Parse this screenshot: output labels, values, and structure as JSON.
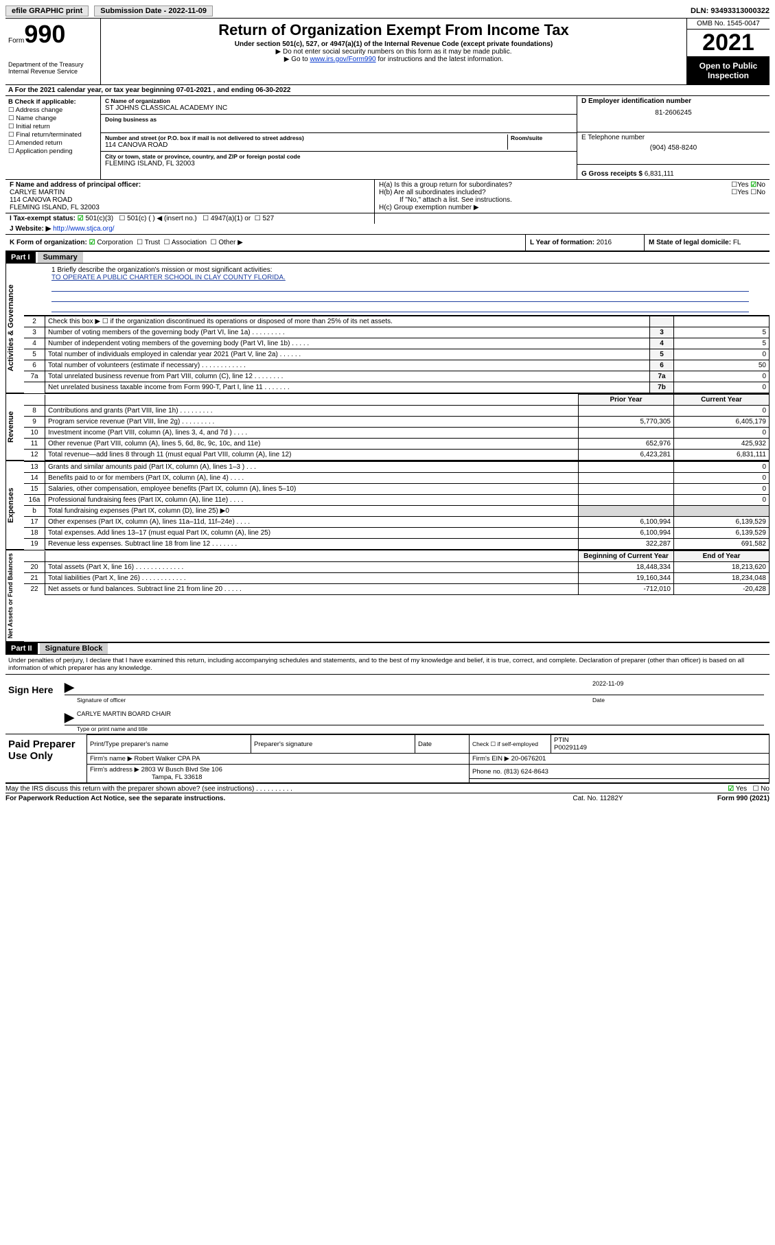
{
  "topbar": {
    "efile": "efile GRAPHIC print",
    "submission_label": "Submission Date - 2022-11-09",
    "dln": "DLN: 93493313000322"
  },
  "header": {
    "form_word": "Form",
    "form_num": "990",
    "dept": "Department of the Treasury\nInternal Revenue Service",
    "title": "Return of Organization Exempt From Income Tax",
    "sub1": "Under section 501(c), 527, or 4947(a)(1) of the Internal Revenue Code (except private foundations)",
    "sub2": "▶ Do not enter social security numbers on this form as it may be made public.",
    "sub3_pre": "▶ Go to ",
    "sub3_link": "www.irs.gov/Form990",
    "sub3_post": " for instructions and the latest information.",
    "omb": "OMB No. 1545-0047",
    "year": "2021",
    "inspection": "Open to Public Inspection"
  },
  "lineA": "A For the 2021 calendar year, or tax year beginning 07-01-2021   , and ending 06-30-2022",
  "colB": {
    "title": "B Check if applicable:",
    "items": [
      "Address change",
      "Name change",
      "Initial return",
      "Final return/terminated",
      "Amended return",
      "Application pending"
    ]
  },
  "colC": {
    "name_label": "C Name of organization",
    "name": "ST JOHNS CLASSICAL ACADEMY INC",
    "dba_label": "Doing business as",
    "dba": "",
    "street_label": "Number and street (or P.O. box if mail is not delivered to street address)",
    "street": "114 CANOVA ROAD",
    "suite_label": "Room/suite",
    "suite": "",
    "city_label": "City or town, state or province, country, and ZIP or foreign postal code",
    "city": "FLEMING ISLAND, FL  32003"
  },
  "colD": {
    "ein_label": "D Employer identification number",
    "ein": "81-2606245",
    "phone_label": "E Telephone number",
    "phone": "(904) 458-8240",
    "gross_label": "G Gross receipts $",
    "gross": "6,831,111"
  },
  "rowF": {
    "f_label": "F Name and address of principal officer:",
    "f_name": "CARLYE MARTIN",
    "f_addr1": "114 CANOVA ROAD",
    "f_addr2": "FLEMING ISLAND, FL  32003",
    "ha": "H(a)  Is this a group return for subordinates?",
    "hb": "H(b)  Are all subordinates included?",
    "hb_note": "If \"No,\" attach a list. See instructions.",
    "hc": "H(c)  Group exemption number ▶"
  },
  "rowI": {
    "label": "I  Tax-exempt status:",
    "opt1": "501(c)(3)",
    "opt2": "501(c) (   ) ◀ (insert no.)",
    "opt3": "4947(a)(1) or",
    "opt4": "527"
  },
  "rowJ": {
    "label": "J  Website: ▶",
    "url": "http://www.stjca.org/"
  },
  "rowK": {
    "label": "K Form of organization:",
    "opts": [
      "Corporation",
      "Trust",
      "Association",
      "Other ▶"
    ]
  },
  "rowL": {
    "label": "L Year of formation:",
    "val": "2016"
  },
  "rowM": {
    "label": "M State of legal domicile:",
    "val": "FL"
  },
  "parts": {
    "p1": "Part I",
    "p1_title": "Summary",
    "p2": "Part II",
    "p2_title": "Signature Block"
  },
  "mission": {
    "q1": "1  Briefly describe the organization's mission or most significant activities:",
    "text": "TO OPERATE A PUBLIC CHARTER SCHOOL IN CLAY COUNTY FLORIDA."
  },
  "side_labels": {
    "gov": "Activities & Governance",
    "rev": "Revenue",
    "exp": "Expenses",
    "net": "Net Assets or Fund Balances"
  },
  "gov_lines": [
    {
      "n": "2",
      "desc": "Check this box ▶ ☐  if the organization discontinued its operations or disposed of more than 25% of its net assets.",
      "lab": "",
      "val": ""
    },
    {
      "n": "3",
      "desc": "Number of voting members of the governing body (Part VI, line 1a)   .    .    .    .    .    .    .    .    .",
      "lab": "3",
      "val": "5"
    },
    {
      "n": "4",
      "desc": "Number of independent voting members of the governing body (Part VI, line 1b)   .    .    .    .    .",
      "lab": "4",
      "val": "5"
    },
    {
      "n": "5",
      "desc": "Total number of individuals employed in calendar year 2021 (Part V, line 2a)   .    .    .    .    .    .",
      "lab": "5",
      "val": "0"
    },
    {
      "n": "6",
      "desc": "Total number of volunteers (estimate if necessary)   .    .    .    .    .    .    .    .    .    .    .    .",
      "lab": "6",
      "val": "50"
    },
    {
      "n": "7a",
      "desc": "Total unrelated business revenue from Part VIII, column (C), line 12   .    .    .    .    .    .    .    .",
      "lab": "7a",
      "val": "0"
    },
    {
      "n": "",
      "desc": "Net unrelated business taxable income from Form 990-T, Part I, line 11   .    .    .    .    .    .    .",
      "lab": "7b",
      "val": "0"
    }
  ],
  "prior_cur_hdr": {
    "prior": "Prior Year",
    "current": "Current Year",
    "boy": "Beginning of Current Year",
    "eoy": "End of Year"
  },
  "rev_lines": [
    {
      "n": "8",
      "desc": "Contributions and grants (Part VIII, line 1h)   .    .    .    .    .    .    .    .    .",
      "prior": "",
      "cur": "0"
    },
    {
      "n": "9",
      "desc": "Program service revenue (Part VIII, line 2g)   .    .    .    .    .    .    .    .    .",
      "prior": "5,770,305",
      "cur": "6,405,179"
    },
    {
      "n": "10",
      "desc": "Investment income (Part VIII, column (A), lines 3, 4, and 7d )   .    .    .    .",
      "prior": "",
      "cur": "0"
    },
    {
      "n": "11",
      "desc": "Other revenue (Part VIII, column (A), lines 5, 6d, 8c, 9c, 10c, and 11e)",
      "prior": "652,976",
      "cur": "425,932"
    },
    {
      "n": "12",
      "desc": "Total revenue—add lines 8 through 11 (must equal Part VIII, column (A), line 12)",
      "prior": "6,423,281",
      "cur": "6,831,111"
    }
  ],
  "exp_lines": [
    {
      "n": "13",
      "desc": "Grants and similar amounts paid (Part IX, column (A), lines 1–3 )   .    .    .",
      "prior": "",
      "cur": "0"
    },
    {
      "n": "14",
      "desc": "Benefits paid to or for members (Part IX, column (A), line 4)   .    .    .    .",
      "prior": "",
      "cur": "0"
    },
    {
      "n": "15",
      "desc": "Salaries, other compensation, employee benefits (Part IX, column (A), lines 5–10)",
      "prior": "",
      "cur": "0"
    },
    {
      "n": "16a",
      "desc": "Professional fundraising fees (Part IX, column (A), line 11e)   .    .    .    .",
      "prior": "",
      "cur": "0"
    },
    {
      "n": "b",
      "desc": "Total fundraising expenses (Part IX, column (D), line 25) ▶0",
      "prior": "SHADE",
      "cur": "SHADE"
    },
    {
      "n": "17",
      "desc": "Other expenses (Part IX, column (A), lines 11a–11d, 11f–24e)   .    .    .    .",
      "prior": "6,100,994",
      "cur": "6,139,529"
    },
    {
      "n": "18",
      "desc": "Total expenses. Add lines 13–17 (must equal Part IX, column (A), line 25)",
      "prior": "6,100,994",
      "cur": "6,139,529"
    },
    {
      "n": "19",
      "desc": "Revenue less expenses. Subtract line 18 from line 12   .    .    .    .    .    .    .",
      "prior": "322,287",
      "cur": "691,582"
    }
  ],
  "net_lines": [
    {
      "n": "20",
      "desc": "Total assets (Part X, line 16)   .    .    .    .    .    .    .    .    .    .    .    .    .",
      "prior": "18,448,334",
      "cur": "18,213,620"
    },
    {
      "n": "21",
      "desc": "Total liabilities (Part X, line 26)   .    .    .    .    .    .    .    .    .    .    .    .",
      "prior": "19,160,344",
      "cur": "18,234,048"
    },
    {
      "n": "22",
      "desc": "Net assets or fund balances. Subtract line 21 from line 20   .    .    .    .    .",
      "prior": "-712,010",
      "cur": "-20,428"
    }
  ],
  "penalty": "Under penalties of perjury, I declare that I have examined this return, including accompanying schedules and statements, and to the best of my knowledge and belief, it is true, correct, and complete. Declaration of preparer (other than officer) is based on all information of which preparer has any knowledge.",
  "sign": {
    "here": "Sign Here",
    "sig_label": "Signature of officer",
    "date_label": "Date",
    "date": "2022-11-09",
    "name_label": "Type or print name and title",
    "name": "CARLYE MARTIN  BOARD CHAIR"
  },
  "prep": {
    "title": "Paid Preparer Use Only",
    "h1": "Print/Type preparer's name",
    "h2": "Preparer's signature",
    "h3": "Date",
    "h4_a": "Check ☐ if self-employed",
    "h4_b": "PTIN",
    "ptin": "P00291149",
    "firm_name_l": "Firm's name      ▶",
    "firm_name": "Robert Walker CPA PA",
    "firm_ein_l": "Firm's EIN ▶",
    "firm_ein": "20-0676201",
    "firm_addr_l": "Firm's address ▶",
    "firm_addr1": "2803 W Busch Blvd Ste 106",
    "firm_addr2": "Tampa, FL  33618",
    "phone_l": "Phone no.",
    "phone": "(813) 624-8643"
  },
  "footer": {
    "discuss": "May the IRS discuss this return with the preparer shown above? (see instructions)   .    .    .    .    .    .    .    .    .    .",
    "yes": "Yes",
    "no": "No",
    "paperwork": "For Paperwork Reduction Act Notice, see the separate instructions.",
    "cat": "Cat. No. 11282Y",
    "formfoot": "Form 990 (2021)"
  }
}
